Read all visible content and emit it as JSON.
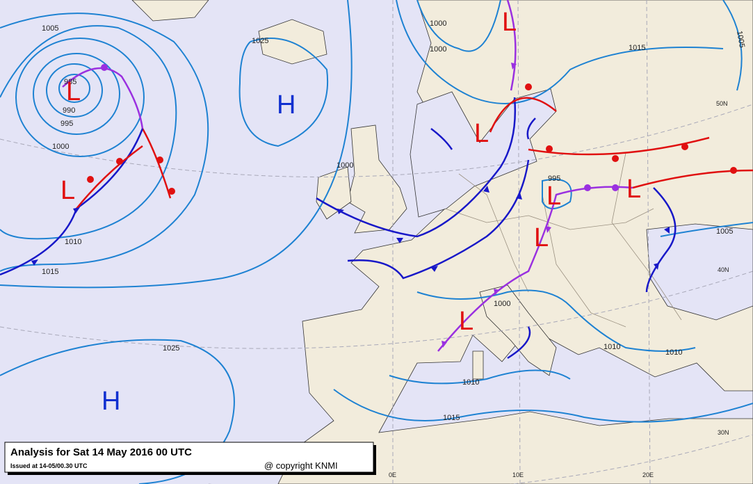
{
  "footer": {
    "title": "Analysis for Sat 14 May 2016 00 UTC",
    "issued": "Issued at 14-05/00.30 UTC",
    "copyright": "@ copyright KNMI"
  },
  "isobar_labels": [
    1005,
    1025,
    985,
    990,
    995,
    1000,
    1010,
    1015,
    1000,
    1000,
    1015,
    1005,
    1000,
    995,
    1005,
    1000,
    1010,
    1010,
    1010,
    1015,
    1025
  ],
  "pressure_centers": [
    "H",
    "L",
    "L",
    "L",
    "L",
    "L",
    "L",
    "L",
    "L",
    "H"
  ],
  "graticule_labels": [
    "50N",
    "40N",
    "30N",
    "0E",
    "10E",
    "20E"
  ]
}
